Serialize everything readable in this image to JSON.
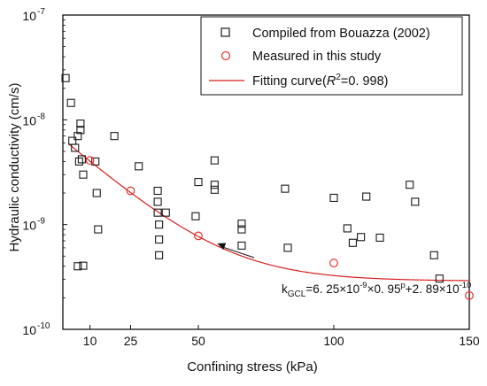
{
  "chart_data": {
    "type": "scatter",
    "xlabel": "Confining stress (kPa)",
    "ylabel": "Hydraulic conductivity (cm/s)",
    "xlim": [
      0,
      150
    ],
    "ylim": [
      1e-10,
      1e-07
    ],
    "yscale": "log",
    "x_ticks": [
      {
        "value": 10,
        "label": "10"
      },
      {
        "value": 25,
        "label": "25"
      },
      {
        "value": 50,
        "label": "50"
      },
      {
        "value": 100,
        "label": "100"
      },
      {
        "value": 150,
        "label": "150"
      }
    ],
    "y_ticks": [
      {
        "value": 1e-10,
        "base": "10",
        "exp": "-10"
      },
      {
        "value": 1e-09,
        "base": "10",
        "exp": "-9"
      },
      {
        "value": 1e-08,
        "base": "10",
        "exp": "-8"
      },
      {
        "value": 1e-07,
        "base": "10",
        "exp": "-7"
      }
    ],
    "legend_position": "top-right",
    "series": [
      {
        "name": "Compiled from Bouazza (2002)",
        "marker": "square",
        "color": "#1a1a1a",
        "points": [
          [
            1,
            2.5e-08
          ],
          [
            3,
            1.45e-08
          ],
          [
            3.5,
            6.3e-09
          ],
          [
            4.5,
            5.4e-09
          ],
          [
            5.5,
            7e-09
          ],
          [
            6,
            4e-09
          ],
          [
            6.5,
            8e-09
          ],
          [
            6.5,
            9.2e-09
          ],
          [
            7,
            4.2e-09
          ],
          [
            7.5,
            3e-09
          ],
          [
            5.5,
            4e-10
          ],
          [
            7.5,
            4.05e-10
          ],
          [
            12,
            4e-09
          ],
          [
            12.5,
            2e-09
          ],
          [
            13,
            9e-10
          ],
          [
            19,
            7e-09
          ],
          [
            28,
            3.6e-09
          ],
          [
            35,
            2.1e-09
          ],
          [
            35,
            1.65e-09
          ],
          [
            35,
            1.3e-09
          ],
          [
            35.5,
            1e-09
          ],
          [
            35.5,
            7.2e-10
          ],
          [
            35.5,
            5.1e-10
          ],
          [
            38,
            1.3e-09
          ],
          [
            49,
            1.2e-09
          ],
          [
            50,
            2.55e-09
          ],
          [
            56,
            4.1e-09
          ],
          [
            56,
            2.4e-09
          ],
          [
            56,
            2.15e-09
          ],
          [
            66,
            1.02e-09
          ],
          [
            66,
            9e-10
          ],
          [
            66,
            6.3e-10
          ],
          [
            82,
            2.2e-09
          ],
          [
            83,
            6e-10
          ],
          [
            100,
            1.8e-09
          ],
          [
            105,
            9.2e-10
          ],
          [
            107,
            6.7e-10
          ],
          [
            110,
            7.6e-10
          ],
          [
            112,
            1.85e-09
          ],
          [
            117,
            7.5e-10
          ],
          [
            128,
            2.4e-09
          ],
          [
            130,
            1.65e-09
          ],
          [
            137,
            5.1e-10
          ],
          [
            139,
            3.05e-10
          ]
        ]
      },
      {
        "name": "Measured in this study",
        "marker": "circle",
        "color": "#e8302a",
        "points": [
          [
            10,
            4.1e-09
          ],
          [
            25,
            2.1e-09
          ],
          [
            50,
            7.8e-10
          ],
          [
            100,
            4.3e-10
          ],
          [
            150,
            2.1e-10
          ]
        ]
      },
      {
        "name": "Fitting curve",
        "name_math": "R",
        "name_sup": "2",
        "name_rest": "=0. 998)",
        "marker": "line",
        "color": "#d81e1e",
        "model": {
          "a": 6.25e-09,
          "b": 0.95,
          "c": 2.89e-10
        },
        "x_range": [
          2,
          150
        ]
      }
    ],
    "annotation": {
      "prefix": "k",
      "sub": "GCL",
      "part1": "=6. 25×10",
      "exp1": "-9",
      "part2": "×0. 95",
      "exp2": "p",
      "part3": "+2. 89×10",
      "exp3": "-10",
      "arrow_to": [
        57,
        6.6e-10
      ]
    }
  }
}
